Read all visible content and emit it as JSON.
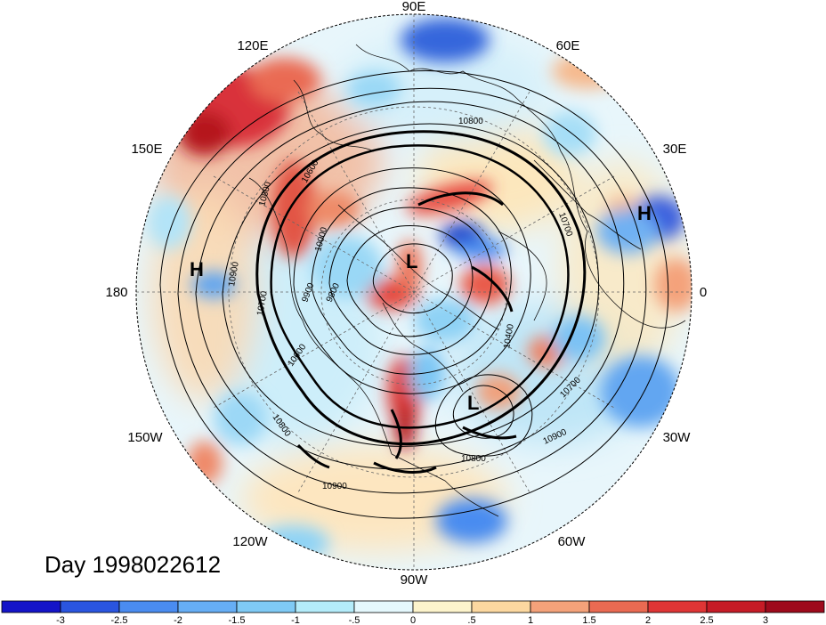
{
  "map": {
    "title": "Day 1998022612",
    "projection": "north-polar-stereographic",
    "shading": "anomaly (diverging blue-red)",
    "longitude_labels": [
      "90E",
      "60E",
      "30E",
      "0",
      "30W",
      "60W",
      "90W",
      "120W",
      "150W",
      "180",
      "150E",
      "120E"
    ],
    "contour_labels": [
      "10800",
      "10700",
      "10800",
      "10600",
      "10000",
      "9900",
      "9800",
      "10900",
      "10700",
      "10600",
      "10800",
      "10400",
      "10800",
      "10700",
      "10900",
      "10900"
    ],
    "pressure_markers": [
      {
        "type": "H",
        "region": "near 180"
      },
      {
        "type": "H",
        "region": "near 30E"
      },
      {
        "type": "L",
        "region": "north polar center"
      },
      {
        "type": "L",
        "region": "near 60W"
      }
    ],
    "colors": {
      "contour": "#000000",
      "graticule": "#888888",
      "coast": "#111111"
    }
  },
  "colorbar": {
    "tick_labels": [
      "-3",
      "-2.5",
      "-2",
      "-1.5",
      "-1",
      "-.5",
      "0",
      ".5",
      "1",
      "1.5",
      "2",
      "2.5",
      "3"
    ],
    "colors": [
      "#1414c8",
      "#2a55e0",
      "#4a8cf0",
      "#66aef5",
      "#7fcaf5",
      "#b4ecfa",
      "#e5f8fd",
      "#fdf4cc",
      "#fcd8a0",
      "#f4a27a",
      "#ea6a52",
      "#df3535",
      "#c61b26",
      "#9e0a1c"
    ]
  }
}
